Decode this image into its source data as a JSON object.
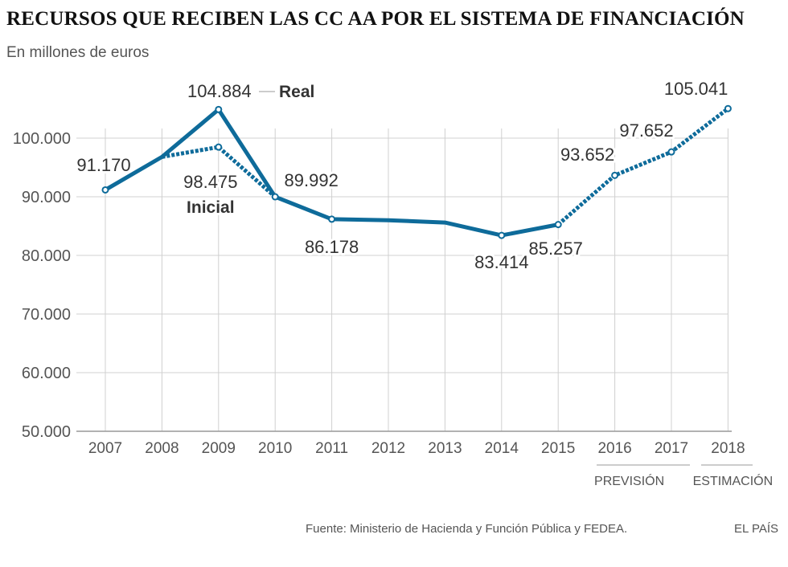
{
  "title": "RECURSOS QUE RECIBEN LAS CC AA POR EL SISTEMA DE FINANCIACIÓN",
  "subtitle": "En millones de euros",
  "source": "Fuente: Ministerio de Hacienda y Función Pública y FEDEA.",
  "brand": "EL PAÍS",
  "colors": {
    "line": "#0e6b9a",
    "grid": "#d0d0d0",
    "axis": "#999999",
    "text": "#555555",
    "label": "#333333"
  },
  "chart_data": {
    "type": "line",
    "x": [
      "2007",
      "2008",
      "2009",
      "2010",
      "2011",
      "2012",
      "2013",
      "2014",
      "2015",
      "2016",
      "2017",
      "2018"
    ],
    "ylim": [
      50000,
      105000
    ],
    "yticks": [
      50000,
      60000,
      70000,
      80000,
      90000,
      100000
    ],
    "ytick_labels": [
      "50.000",
      "60.000",
      "70.000",
      "80.000",
      "90.000",
      "100.000"
    ],
    "grid": true,
    "series": [
      {
        "name": "Real",
        "style": "solid",
        "x": [
          "2007",
          "2008",
          "2009",
          "2010",
          "2011",
          "2012",
          "2013",
          "2014",
          "2015"
        ],
        "values": [
          91170,
          96800,
          104884,
          89992,
          86178,
          86000,
          85600,
          83414,
          85257
        ]
      },
      {
        "name": "Inicial",
        "style": "dotted",
        "x": [
          "2008",
          "2009",
          "2010"
        ],
        "values": [
          96800,
          98475,
          89992
        ]
      },
      {
        "name": "Previsión/Estimación",
        "style": "dotted",
        "x": [
          "2015",
          "2016",
          "2017",
          "2018"
        ],
        "values": [
          85257,
          93652,
          97652,
          105041
        ]
      }
    ],
    "markers": [
      {
        "x": "2007",
        "value": 91170,
        "label": "91.170"
      },
      {
        "x": "2009",
        "value": 104884,
        "label": "104.884"
      },
      {
        "x": "2009",
        "value": 98475,
        "label": "98.475"
      },
      {
        "x": "2010",
        "value": 89992,
        "label": "89.992"
      },
      {
        "x": "2011",
        "value": 86178,
        "label": "86.178"
      },
      {
        "x": "2014",
        "value": 83414,
        "label": "83.414"
      },
      {
        "x": "2015",
        "value": 85257,
        "label": "85.257"
      },
      {
        "x": "2016",
        "value": 93652,
        "label": "93.652"
      },
      {
        "x": "2017",
        "value": 97652,
        "label": "97.652"
      },
      {
        "x": "2018",
        "value": 105041,
        "label": "105.041"
      }
    ],
    "annotations": {
      "real": "Real",
      "inicial": "Inicial",
      "prevision": "PREVISIÓN",
      "estimacion": "ESTIMACIÓN"
    }
  }
}
